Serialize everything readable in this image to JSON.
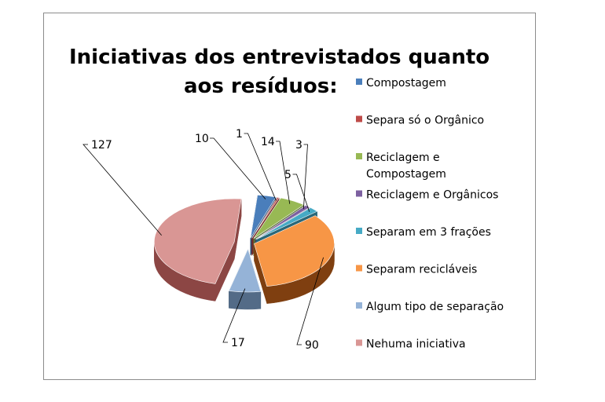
{
  "chart_data": {
    "type": "pie",
    "title_lines": [
      "Iniciativas dos entrevistados quanto",
      "aos resíduos:"
    ],
    "legend_position": "right",
    "categories": [
      "Compostagem",
      "Separa só o Orgânico",
      "Reciclagem e Compostagem",
      "Reciclagem e Orgânicos",
      "Separam em 3 frações",
      "Separam recicláveis",
      "Algum tipo de separação",
      "Nehuma iniciativa"
    ],
    "legend_lines": [
      [
        "Compostagem"
      ],
      [
        "Separa só o Orgânico"
      ],
      [
        "Reciclagem e",
        "Compostagem"
      ],
      [
        "Reciclagem e Orgânicos"
      ],
      [
        "Separam em 3 frações"
      ],
      [
        "Separam recicláveis"
      ],
      [
        "Algum tipo de separação"
      ],
      [
        "Nehuma iniciativa"
      ]
    ],
    "values": [
      10,
      1,
      14,
      3,
      5,
      90,
      17,
      127
    ],
    "data_labels": [
      "10",
      "1",
      "14",
      "3",
      "5",
      "90",
      "17",
      "127"
    ],
    "colors": [
      "#4a7ebb",
      "#be4b48",
      "#98b954",
      "#7d60a0",
      "#46aac5",
      "#f79646",
      "#95b3d7",
      "#d99694"
    ],
    "side_colors": [
      "#2c4d74",
      "#772b29",
      "#5d7332",
      "#4c3a62",
      "#2a6879",
      "#7f3f10",
      "#536b87",
      "#8c4644"
    ],
    "exploded": true,
    "three_d": true
  }
}
